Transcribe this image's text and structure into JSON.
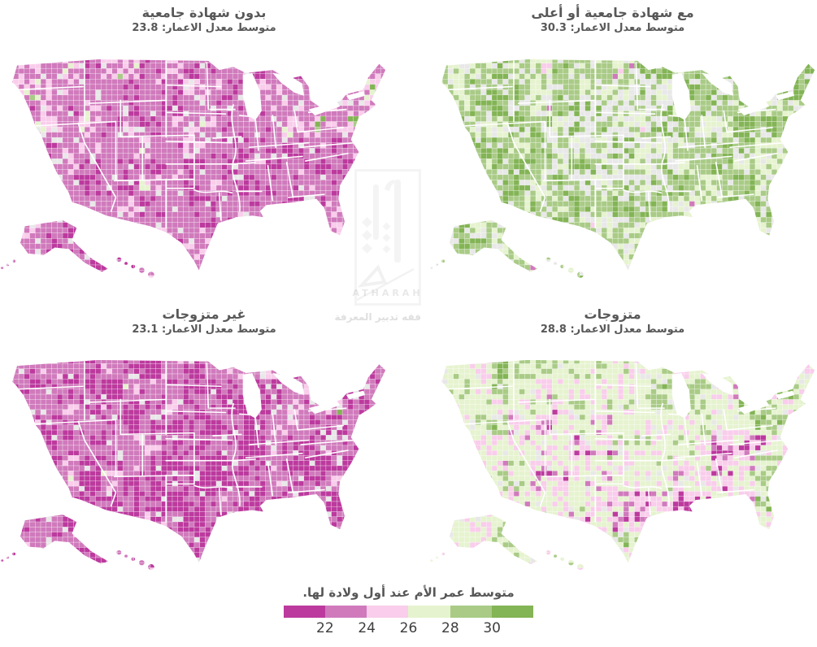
{
  "watermark": {
    "brand": "ATHARAH",
    "tagline": "فقه تدبير المعرفة"
  },
  "chart_data": {
    "type": "choropleth",
    "layout": "2x2 small multiples, US counties",
    "legend": {
      "title": "متوسط عمر الأم عند أول ولادة لها.",
      "ticks": [
        "22",
        "24",
        "26",
        "28",
        "30"
      ],
      "colors": [
        "#bc3a9e",
        "#d07abc",
        "#f9cdeb",
        "#e6f3cf",
        "#a9cb86",
        "#83b455"
      ],
      "no_data_color": "#e8e8e8",
      "position": "bottom-center"
    },
    "maps": [
      {
        "id": "no-college",
        "title": "بدون شهادة جامعية",
        "stat_label": "متوسط معدل الاعمار:",
        "mean_age": "23.8",
        "dominant_tone": "pink",
        "color_mix": [
          0.26,
          0.48,
          0.17,
          0.05,
          0.03,
          0.01
        ],
        "no_data_share": 0.05,
        "seed": 7
      },
      {
        "id": "college-or-higher",
        "title": "مع شهادة جامعية أو أعلى",
        "stat_label": "متوسط معدل الاعمار:",
        "mean_age": "30.3",
        "dominant_tone": "green",
        "color_mix": [
          0.01,
          0.02,
          0.04,
          0.3,
          0.36,
          0.27
        ],
        "no_data_share": 0.14,
        "seed": 13
      },
      {
        "id": "unmarried",
        "title": "غير متزوجات",
        "stat_label": "متوسط معدل الاعمار:",
        "mean_age": "23.1",
        "dominant_tone": "dark-pink",
        "color_mix": [
          0.4,
          0.41,
          0.13,
          0.04,
          0.015,
          0.005
        ],
        "no_data_share": 0.05,
        "seed": 21
      },
      {
        "id": "married",
        "title": "متزوجات",
        "stat_label": "متوسط معدل الاعمار:",
        "mean_age": "28.8",
        "dominant_tone": "light-green-pink-mix",
        "color_mix": [
          0.02,
          0.08,
          0.24,
          0.36,
          0.22,
          0.08
        ],
        "no_data_share": 0.06,
        "seed": 34
      }
    ]
  }
}
